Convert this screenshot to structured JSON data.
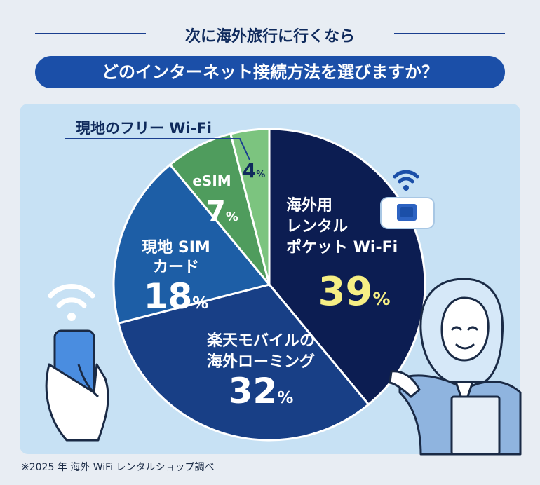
{
  "header": {
    "subtitle": "次に海外旅行に行くなら",
    "question": "どのインターネット接続方法を選びますか？"
  },
  "footnote": "※2025 年 海外 WiFi レンタルショップ調べ",
  "chart_data": {
    "type": "pie",
    "title": "どのインターネット接続方法を選びますか？",
    "slices": [
      {
        "label": "海外用レンタルポケット Wi-Fi",
        "label_lines": [
          "海外用",
          "レンタル",
          "ポケット Wi-Fi"
        ],
        "value": 39,
        "value_text": "39",
        "color": "#0c1d52",
        "value_color": "#f6ef84",
        "label_color": "#ffffff"
      },
      {
        "label": "楽天モバイルの海外ローミング",
        "label_lines": [
          "楽天モバイルの",
          "海外ローミング"
        ],
        "value": 32,
        "value_text": "32",
        "color": "#183f86",
        "value_color": "#ffffff",
        "label_color": "#ffffff"
      },
      {
        "label": "現地 SIM カード",
        "label_lines": [
          "現地 SIM",
          "カード"
        ],
        "value": 18,
        "value_text": "18",
        "color": "#1d5ea6",
        "value_color": "#ffffff",
        "label_color": "#ffffff"
      },
      {
        "label": "eSIM",
        "label_lines": [
          "eSIM"
        ],
        "value": 7,
        "value_text": "7",
        "color": "#4f9c5d",
        "value_color": "#ffffff",
        "label_color": "#ffffff"
      },
      {
        "label": "現地のフリー Wi-Fi",
        "label_lines": [],
        "value": 4,
        "value_text": "4",
        "color": "#7cc47f",
        "value_color": "#0f2a5c",
        "label_color": "#0f2a5c"
      }
    ],
    "percent_sign": "%",
    "external_label": "現地のフリー Wi-Fi",
    "unit": "%"
  }
}
